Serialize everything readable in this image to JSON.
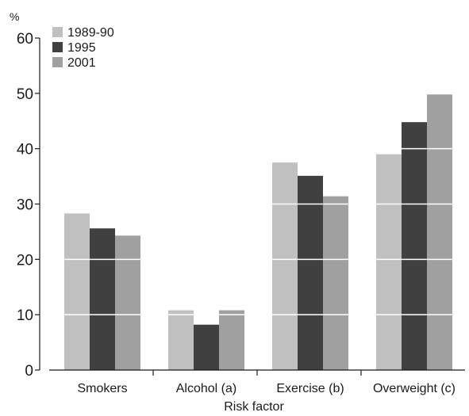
{
  "chart_data": {
    "type": "bar",
    "title": "",
    "unit_label": "%",
    "xlabel": "Risk factor",
    "ylabel": "",
    "ylim": [
      0,
      60
    ],
    "yticks": [
      0,
      10,
      20,
      30,
      40,
      50,
      60
    ],
    "ytick_labels": [
      "0",
      "10",
      "20",
      "30",
      "40",
      "50",
      "60"
    ],
    "grid": "horizontal, white, drawn over bars",
    "legend_position": "top-left",
    "categories": [
      "Smokers",
      "Alcohol (a)",
      "Exercise (b)",
      "Overweight (c)"
    ],
    "series": [
      {
        "name": "1989-90",
        "color": "#c0c0c0",
        "values": [
          28.3,
          10.8,
          37.5,
          39.0
        ]
      },
      {
        "name": "1995",
        "color": "#404040",
        "values": [
          25.6,
          8.2,
          35.1,
          44.8
        ]
      },
      {
        "name": "2001",
        "color": "#a0a0a0",
        "values": [
          24.3,
          10.8,
          31.4,
          49.8
        ]
      }
    ]
  }
}
